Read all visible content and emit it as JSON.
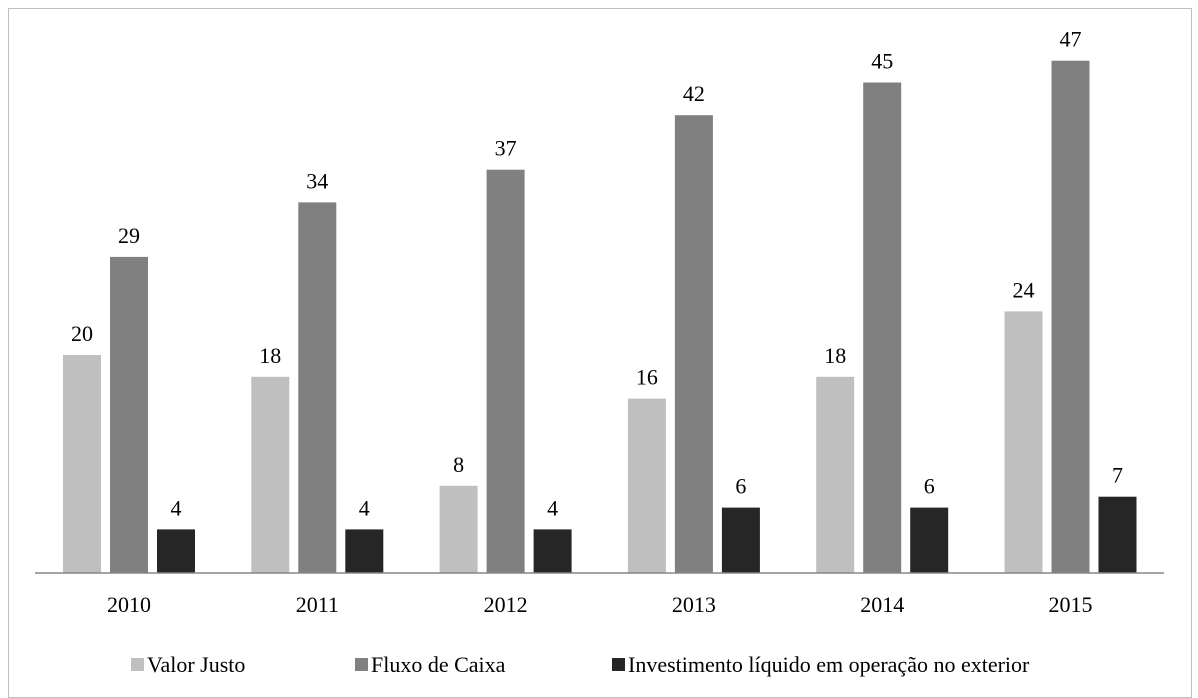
{
  "chart_data": {
    "type": "bar",
    "categories": [
      "2010",
      "2011",
      "2012",
      "2013",
      "2014",
      "2015"
    ],
    "series": [
      {
        "name": "Valor Justo",
        "color": "#bfbfbf",
        "values": [
          20,
          18,
          8,
          16,
          18,
          24
        ]
      },
      {
        "name": "Fluxo de Caixa",
        "color": "#808080",
        "values": [
          29,
          34,
          37,
          42,
          45,
          47
        ]
      },
      {
        "name": "Investimento líquido em operação no exterior",
        "color": "#262626",
        "values": [
          4,
          4,
          4,
          6,
          6,
          7
        ]
      }
    ],
    "data_labels": true,
    "ylim": [
      0,
      50
    ],
    "grid": false,
    "legend_position": "bottom",
    "title": "",
    "xlabel": "",
    "ylabel": ""
  }
}
